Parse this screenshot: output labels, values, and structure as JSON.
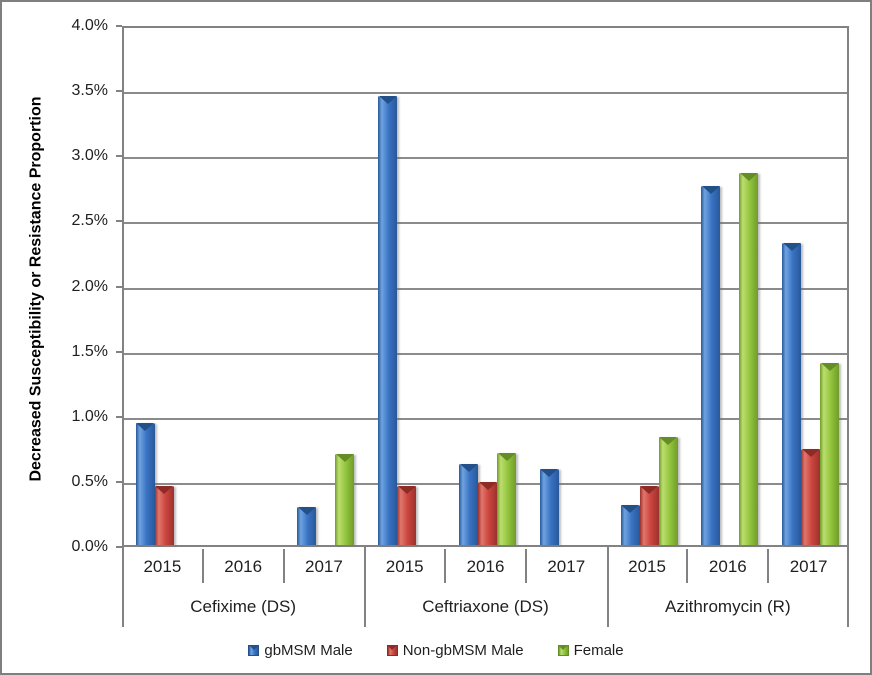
{
  "chart_data": {
    "type": "bar",
    "title": "",
    "ylabel": "Decreased Susceptibility or Resistance Proportion",
    "xlabel": "",
    "ylim": [
      0,
      4
    ],
    "ytick_labels": [
      "0.0%",
      "0.5%",
      "1.0%",
      "1.5%",
      "2.0%",
      "2.5%",
      "3.0%",
      "3.5%",
      "4.0%"
    ],
    "ytick_values": [
      0,
      0.5,
      1,
      1.5,
      2,
      2.5,
      3,
      3.5,
      4
    ],
    "grid": true,
    "legend_position": "bottom",
    "values_unit": "percent",
    "groups": [
      "Cefixime (DS)",
      "Ceftriaxone (DS)",
      "Azithromycin (R)"
    ],
    "years": [
      "2015",
      "2016",
      "2017"
    ],
    "series": [
      {
        "name": "gbMSM Male",
        "colors": {
          "body": "#3A74C4",
          "light": "#6FA3E0",
          "dark": "#28589A",
          "notch": "#245089"
        },
        "values": [
          [
            0.94,
            0,
            0.29
          ],
          [
            3.45,
            0.62,
            0.58
          ],
          [
            0.31,
            2.76,
            2.32
          ]
        ]
      },
      {
        "name": "Non-gbMSM Male",
        "colors": {
          "body": "#CC463F",
          "light": "#E0776D",
          "dark": "#9C312C",
          "notch": "#8E2B27"
        },
        "values": [
          [
            0.45,
            0,
            0
          ],
          [
            0.45,
            0.48,
            0
          ],
          [
            0.45,
            0,
            0.74
          ]
        ]
      },
      {
        "name": "Female",
        "colors": {
          "body": "#94C63E",
          "light": "#BCDE70",
          "dark": "#6F9C2A",
          "notch": "#648D25"
        },
        "values": [
          [
            0,
            0,
            0.7
          ],
          [
            0,
            0.71,
            0
          ],
          [
            0.83,
            2.86,
            1.4
          ]
        ]
      }
    ]
  }
}
